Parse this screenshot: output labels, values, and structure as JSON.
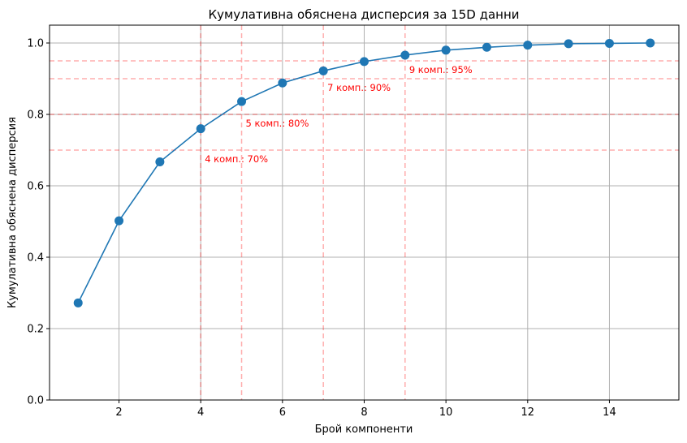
{
  "chart_data": {
    "type": "line",
    "title": "Кумулативна обяснена дисперсия за 15D данни",
    "xlabel": "Брой компоненти",
    "ylabel": "Кумулативна обяснена дисперсия",
    "xlim": [
      0.3,
      15.7
    ],
    "ylim": [
      0.0,
      1.05
    ],
    "xticks": [
      "2",
      "4",
      "6",
      "8",
      "10",
      "12",
      "14"
    ],
    "yticks": [
      "0.0",
      "0.2",
      "0.4",
      "0.6",
      "0.8",
      "1.0"
    ],
    "grid": true,
    "series": [
      {
        "color": "#1f77b4",
        "x": [
          1,
          2,
          3,
          4,
          5,
          6,
          7,
          8,
          9,
          10,
          11,
          12,
          13,
          14,
          15
        ],
        "y": [
          0.272,
          0.502,
          0.667,
          0.76,
          0.836,
          0.888,
          0.922,
          0.948,
          0.966,
          0.98,
          0.988,
          0.994,
          0.998,
          0.999,
          1.0
        ]
      }
    ],
    "thresholds": [
      {
        "y": 0.7,
        "x": 4,
        "label": "4 комп.: 70%"
      },
      {
        "y": 0.8,
        "x": 5,
        "label": "5 комп.: 80%"
      },
      {
        "y": 0.9,
        "x": 7,
        "label": "7 комп.: 90%"
      },
      {
        "y": 0.95,
        "x": 9,
        "label": "9 комп.: 95%"
      }
    ],
    "threshold_color": "#ff0000"
  }
}
